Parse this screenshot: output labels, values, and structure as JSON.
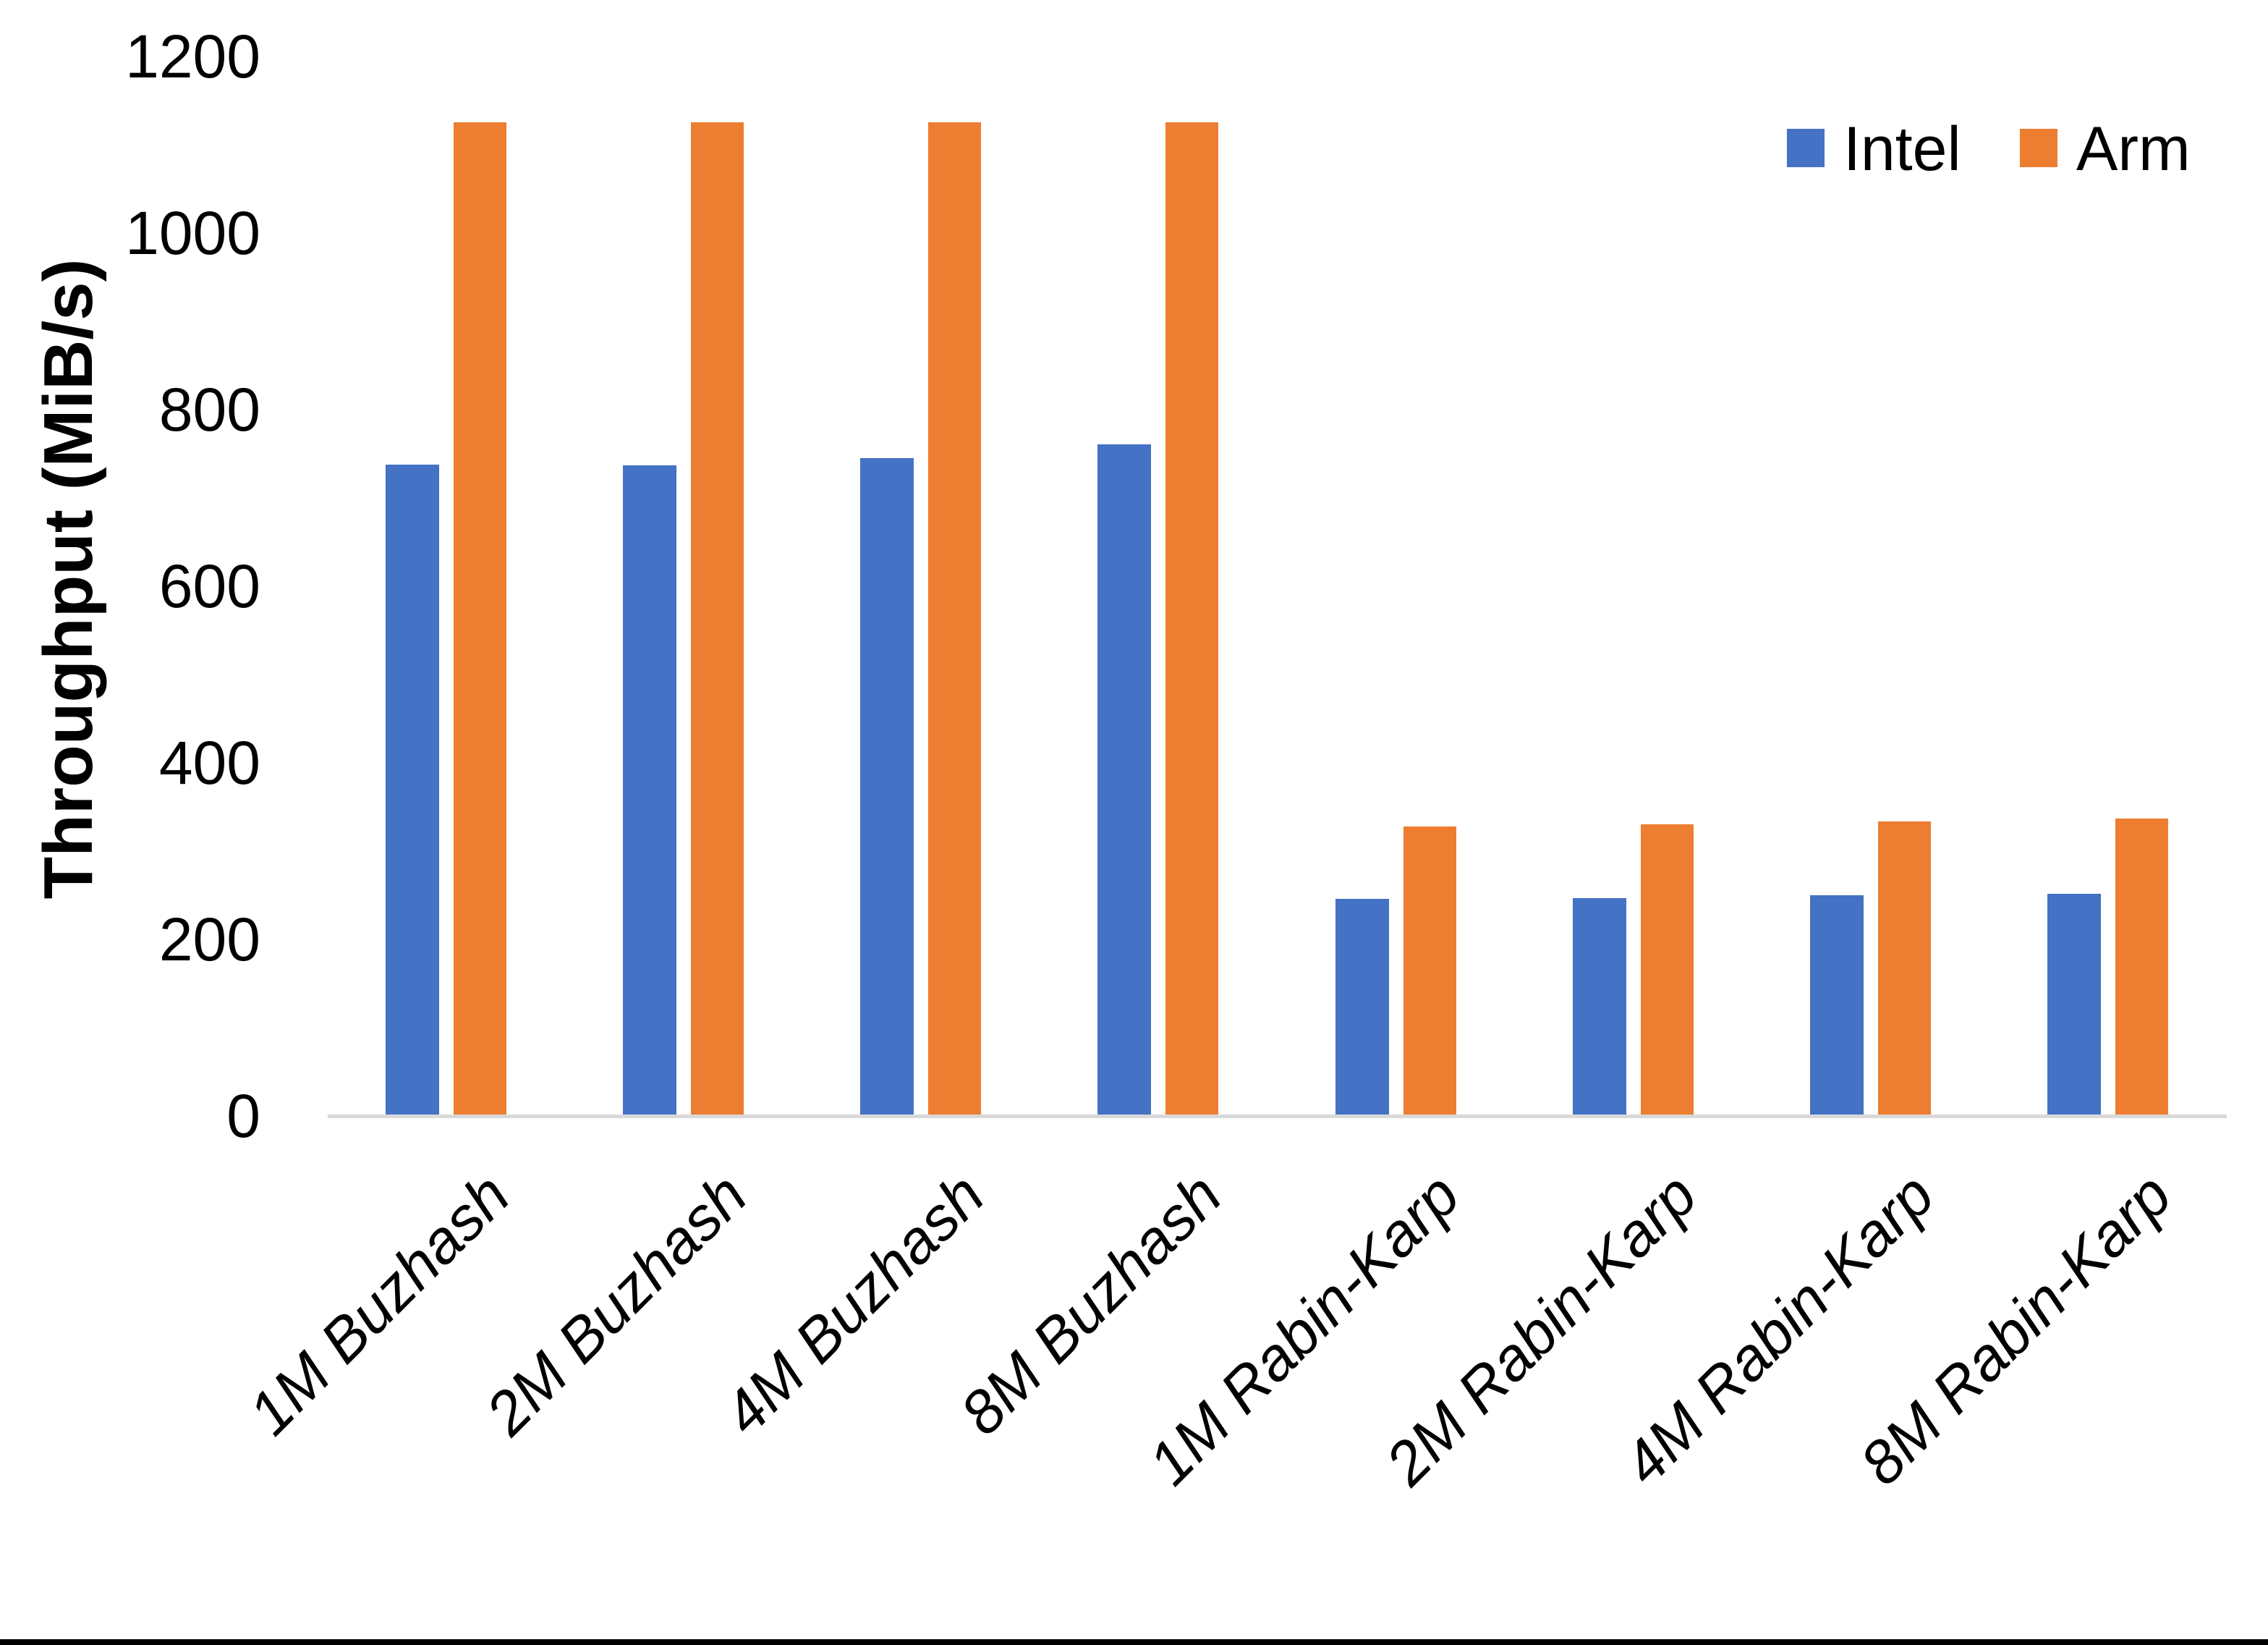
{
  "page": {
    "background": "#FFFFFF",
    "axis_line_color": "#D9D9D9",
    "bottom_border_color": "#000000"
  },
  "chart_data": {
    "type": "bar",
    "title": "",
    "xlabel": "",
    "ylabel": "Throughput (MiB/s)",
    "ylim": [
      0,
      1200
    ],
    "yticks": [
      0,
      200,
      400,
      600,
      800,
      1000,
      1200
    ],
    "grid": false,
    "legend_position": "top-right",
    "categories": [
      "1M Buzhash",
      "2M Buzhash",
      "4M Buzhash",
      "8M Buzhash",
      "1M Rabin-Karp",
      "2M Rabin-Karp",
      "4M Rabin-Karp",
      "8M Rabin-Karp"
    ],
    "series": [
      {
        "name": "Intel",
        "color": "#4472C4",
        "values": [
          738,
          737,
          745,
          761,
          246,
          247,
          250,
          252
        ]
      },
      {
        "name": "Arm",
        "color": "#ED7D31",
        "values": [
          1125,
          1125,
          1125,
          1125,
          328,
          330,
          334,
          337
        ]
      }
    ]
  }
}
